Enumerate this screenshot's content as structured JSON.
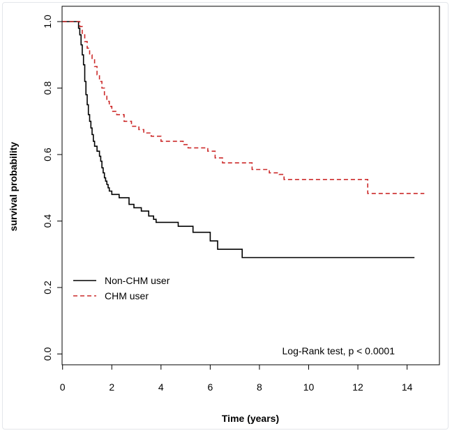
{
  "chart_data": {
    "type": "line",
    "title": "",
    "xlabel": "Time (years)",
    "ylabel": "survival probability",
    "xlim": [
      0,
      15
    ],
    "ylim": [
      0,
      1
    ],
    "xticks": [
      "0",
      "2",
      "4",
      "6",
      "8",
      "10",
      "12",
      "14"
    ],
    "yticks": [
      "0.0",
      "0.2",
      "0.4",
      "0.6",
      "0.8",
      "1.0"
    ],
    "grid": false,
    "legend_position": "bottom-left",
    "annotation": "Log-Rank test, p < 0.0001",
    "series": [
      {
        "name": "Non-CHM user",
        "color": "#000000",
        "style": "solid",
        "steps": [
          [
            0.0,
            1.0
          ],
          [
            0.6,
            1.0
          ],
          [
            0.65,
            0.98
          ],
          [
            0.7,
            0.96
          ],
          [
            0.75,
            0.93
          ],
          [
            0.8,
            0.9
          ],
          [
            0.85,
            0.87
          ],
          [
            0.9,
            0.82
          ],
          [
            0.95,
            0.78
          ],
          [
            1.0,
            0.75
          ],
          [
            1.05,
            0.72
          ],
          [
            1.1,
            0.7
          ],
          [
            1.15,
            0.68
          ],
          [
            1.2,
            0.66
          ],
          [
            1.25,
            0.64
          ],
          [
            1.3,
            0.625
          ],
          [
            1.4,
            0.61
          ],
          [
            1.5,
            0.595
          ],
          [
            1.55,
            0.58
          ],
          [
            1.6,
            0.56
          ],
          [
            1.65,
            0.545
          ],
          [
            1.7,
            0.53
          ],
          [
            1.75,
            0.52
          ],
          [
            1.8,
            0.51
          ],
          [
            1.85,
            0.5
          ],
          [
            1.9,
            0.49
          ],
          [
            2.0,
            0.48
          ],
          [
            2.3,
            0.47
          ],
          [
            2.7,
            0.45
          ],
          [
            2.9,
            0.44
          ],
          [
            3.2,
            0.43
          ],
          [
            3.5,
            0.415
          ],
          [
            3.7,
            0.405
          ],
          [
            3.8,
            0.396
          ],
          [
            4.7,
            0.384
          ],
          [
            5.3,
            0.366
          ],
          [
            6.0,
            0.34
          ],
          [
            6.3,
            0.315
          ],
          [
            7.3,
            0.29
          ],
          [
            14.3,
            0.29
          ]
        ]
      },
      {
        "name": "CHM user",
        "color": "#cc2a2a",
        "style": "dashed",
        "steps": [
          [
            0.0,
            1.0
          ],
          [
            0.6,
            1.0
          ],
          [
            0.7,
            0.985
          ],
          [
            0.8,
            0.96
          ],
          [
            0.9,
            0.94
          ],
          [
            1.0,
            0.92
          ],
          [
            1.1,
            0.9
          ],
          [
            1.2,
            0.885
          ],
          [
            1.3,
            0.865
          ],
          [
            1.4,
            0.84
          ],
          [
            1.5,
            0.82
          ],
          [
            1.6,
            0.8
          ],
          [
            1.7,
            0.78
          ],
          [
            1.8,
            0.76
          ],
          [
            1.9,
            0.745
          ],
          [
            2.0,
            0.73
          ],
          [
            2.2,
            0.72
          ],
          [
            2.5,
            0.7
          ],
          [
            2.8,
            0.685
          ],
          [
            3.1,
            0.675
          ],
          [
            3.3,
            0.665
          ],
          [
            3.6,
            0.655
          ],
          [
            4.0,
            0.64
          ],
          [
            4.9,
            0.63
          ],
          [
            5.1,
            0.62
          ],
          [
            5.9,
            0.61
          ],
          [
            6.2,
            0.59
          ],
          [
            6.5,
            0.575
          ],
          [
            7.7,
            0.555
          ],
          [
            8.4,
            0.545
          ],
          [
            8.8,
            0.54
          ],
          [
            9.0,
            0.525
          ],
          [
            12.4,
            0.483
          ],
          [
            14.7,
            0.483
          ]
        ]
      }
    ]
  }
}
